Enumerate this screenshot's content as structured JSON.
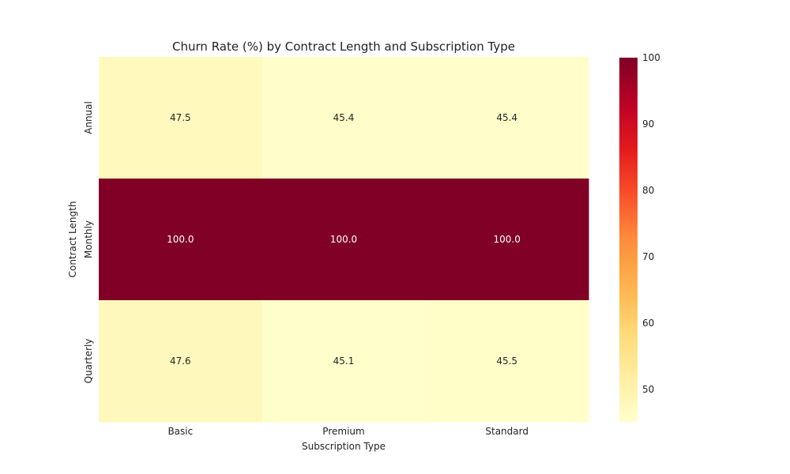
{
  "chart_data": {
    "type": "heatmap",
    "title": "Churn Rate (%) by Contract Length and Subscription Type",
    "xlabel": "Subscription Type",
    "ylabel": "Contract Length",
    "x_categories": [
      "Basic",
      "Premium",
      "Standard"
    ],
    "y_categories": [
      "Annual",
      "Monthly",
      "Quarterly"
    ],
    "values": [
      [
        47.5,
        45.4,
        45.4
      ],
      [
        100.0,
        100.0,
        100.0
      ],
      [
        47.6,
        45.1,
        45.5
      ]
    ],
    "cell_labels": [
      [
        "47.5",
        "45.4",
        "45.4"
      ],
      [
        "100.0",
        "100.0",
        "100.0"
      ],
      [
        "47.6",
        "45.1",
        "45.5"
      ]
    ],
    "colorbar": {
      "min": 45.1,
      "max": 100,
      "ticks": [
        50,
        60,
        70,
        80,
        90,
        100
      ],
      "tick_labels": [
        "50",
        "60",
        "70",
        "80",
        "90",
        "100"
      ],
      "colormap": "YlOrRd"
    },
    "grid": false
  }
}
